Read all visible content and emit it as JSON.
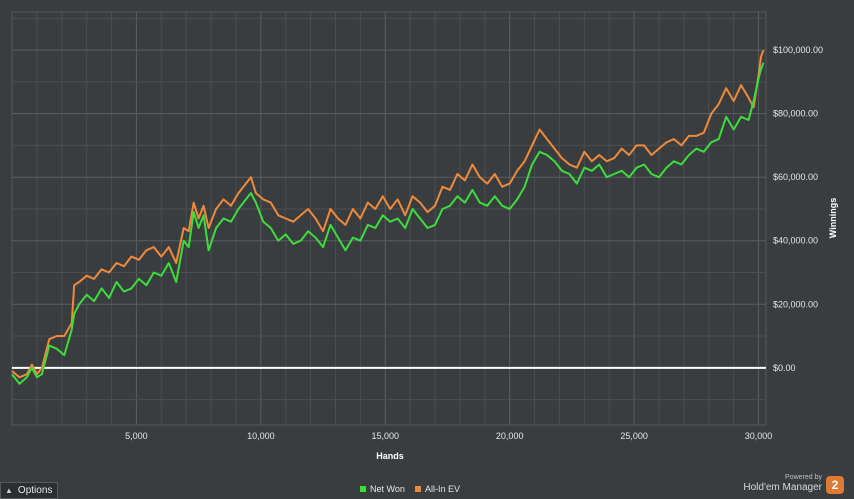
{
  "chart_data": {
    "type": "line",
    "xlabel": "Hands",
    "ylabel": "Winnings",
    "xlim": [
      0,
      30300
    ],
    "ylim": [
      -18000,
      112000
    ],
    "x_ticks": [
      5000,
      10000,
      15000,
      20000,
      25000,
      30000
    ],
    "x_tick_labels": [
      "5,000",
      "10,000",
      "15,000",
      "20,000",
      "25,000",
      "30,000"
    ],
    "y_ticks": [
      0,
      20000,
      40000,
      60000,
      80000,
      100000
    ],
    "y_tick_labels": [
      "$0.00",
      "$20,000.00",
      "$40,000.00",
      "$60,000.00",
      "$80,000.00",
      "$100,000.00"
    ],
    "grid": true,
    "legend_position": "bottom-center",
    "zero_line": true,
    "series": [
      {
        "name": "Net Won",
        "color": "#3ddc3d",
        "x": [
          0,
          300,
          600,
          800,
          1000,
          1200,
          1500,
          1800,
          2100,
          2400,
          2500,
          2700,
          3000,
          3300,
          3600,
          3900,
          4200,
          4500,
          4800,
          5100,
          5400,
          5700,
          6000,
          6300,
          6600,
          6900,
          7100,
          7300,
          7500,
          7700,
          7900,
          8200,
          8500,
          8800,
          9100,
          9400,
          9600,
          9800,
          10100,
          10400,
          10700,
          11000,
          11300,
          11600,
          11900,
          12200,
          12500,
          12800,
          13100,
          13400,
          13700,
          14000,
          14300,
          14600,
          14900,
          15200,
          15500,
          15800,
          16100,
          16400,
          16700,
          17000,
          17300,
          17600,
          17900,
          18200,
          18500,
          18800,
          19100,
          19400,
          19700,
          20000,
          20300,
          20600,
          20900,
          21200,
          21500,
          21800,
          22100,
          22400,
          22700,
          23000,
          23300,
          23600,
          23900,
          24200,
          24500,
          24800,
          25100,
          25400,
          25700,
          26000,
          26300,
          26600,
          26900,
          27200,
          27500,
          27800,
          28100,
          28400,
          28700,
          29000,
          29300,
          29600,
          29800,
          30000,
          30100,
          30200
        ],
        "y": [
          -2000,
          -5000,
          -3000,
          0,
          -3000,
          -2000,
          7000,
          6000,
          4000,
          12000,
          17000,
          20000,
          23000,
          21000,
          25000,
          22000,
          27000,
          24000,
          25000,
          28000,
          26000,
          30000,
          29000,
          33000,
          27000,
          40000,
          38000,
          49000,
          44000,
          48000,
          37000,
          44000,
          47000,
          46000,
          50000,
          53000,
          55000,
          52000,
          46000,
          44000,
          40000,
          42000,
          39000,
          40000,
          43000,
          41000,
          38000,
          45000,
          41000,
          37000,
          41000,
          40000,
          45000,
          44000,
          48000,
          46000,
          47000,
          44000,
          50000,
          47000,
          44000,
          45000,
          50000,
          51000,
          54000,
          52000,
          56000,
          52000,
          51000,
          54000,
          51000,
          50000,
          53000,
          57000,
          64000,
          68000,
          67000,
          65000,
          62000,
          61000,
          58000,
          63000,
          62000,
          64000,
          60000,
          61000,
          62000,
          60000,
          63000,
          64000,
          61000,
          60000,
          63000,
          65000,
          64000,
          67000,
          69000,
          68000,
          71000,
          72000,
          79000,
          75000,
          79000,
          78000,
          84000,
          91000,
          94000,
          96000
        ]
      },
      {
        "name": "All-In EV",
        "color": "#ef8a3a",
        "x": [
          0,
          300,
          600,
          800,
          1000,
          1200,
          1500,
          1800,
          2100,
          2400,
          2500,
          2700,
          3000,
          3300,
          3600,
          3900,
          4200,
          4500,
          4800,
          5100,
          5400,
          5700,
          6000,
          6300,
          6600,
          6900,
          7100,
          7300,
          7500,
          7700,
          7900,
          8200,
          8500,
          8800,
          9100,
          9400,
          9600,
          9800,
          10100,
          10400,
          10700,
          11000,
          11300,
          11600,
          11900,
          12200,
          12500,
          12800,
          13100,
          13400,
          13700,
          14000,
          14300,
          14600,
          14900,
          15200,
          15500,
          15800,
          16100,
          16400,
          16700,
          17000,
          17300,
          17600,
          17900,
          18200,
          18500,
          18800,
          19100,
          19400,
          19700,
          20000,
          20300,
          20600,
          20900,
          21200,
          21500,
          21800,
          22100,
          22400,
          22700,
          23000,
          23300,
          23600,
          23900,
          24200,
          24500,
          24800,
          25100,
          25400,
          25700,
          26000,
          26300,
          26600,
          26900,
          27200,
          27500,
          27800,
          28100,
          28400,
          28700,
          29000,
          29300,
          29600,
          29800,
          30000,
          30100,
          30200
        ],
        "y": [
          -1000,
          -3000,
          -2000,
          1000,
          -2000,
          0,
          9000,
          10000,
          10000,
          14000,
          26000,
          27000,
          29000,
          28000,
          31000,
          30000,
          33000,
          32000,
          35000,
          34000,
          37000,
          38000,
          35000,
          38000,
          33000,
          44000,
          43000,
          52000,
          47000,
          51000,
          44000,
          50000,
          53000,
          51000,
          55000,
          58000,
          60000,
          55000,
          53000,
          52000,
          48000,
          47000,
          46000,
          48000,
          50000,
          47000,
          43000,
          50000,
          47000,
          45000,
          50000,
          47000,
          52000,
          50000,
          54000,
          50000,
          53000,
          48000,
          54000,
          52000,
          49000,
          51000,
          57000,
          56000,
          61000,
          59000,
          64000,
          60000,
          58000,
          61000,
          57000,
          58000,
          62000,
          65000,
          70000,
          75000,
          72000,
          69000,
          66000,
          64000,
          63000,
          68000,
          65000,
          67000,
          65000,
          66000,
          69000,
          67000,
          70000,
          70000,
          67000,
          69000,
          71000,
          72000,
          70000,
          73000,
          73000,
          74000,
          80000,
          83000,
          88000,
          84000,
          89000,
          85000,
          82000,
          92000,
          98000,
          100000
        ]
      }
    ]
  },
  "ui": {
    "options_label": "Options",
    "powered_by": "Powered by",
    "brand_name": "Hold'em Manager",
    "brand_badge": "2"
  }
}
